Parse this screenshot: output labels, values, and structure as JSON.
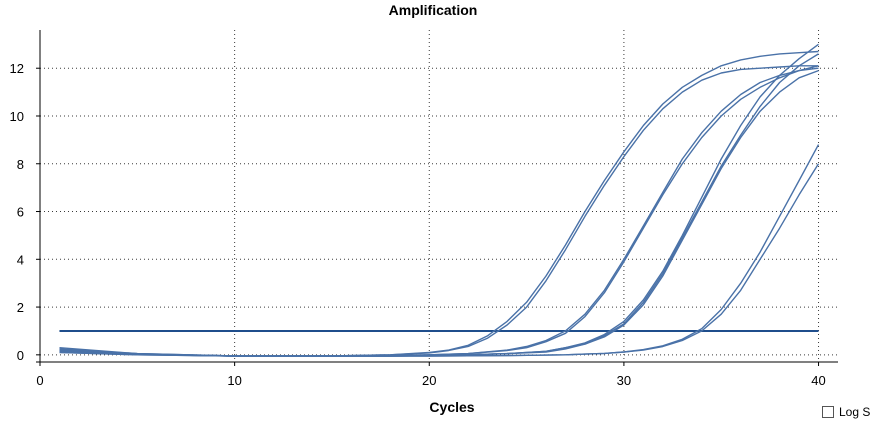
{
  "chart_data": {
    "type": "line",
    "title": "Amplification",
    "xlabel": "Cycles",
    "ylabel": "",
    "xlim": [
      0,
      41
    ],
    "ylim": [
      -0.3,
      13.6
    ],
    "xticks": [
      0,
      10,
      20,
      30,
      40
    ],
    "yticks": [
      0,
      2,
      4,
      6,
      8,
      10,
      12
    ],
    "grid": true,
    "threshold": 1.0,
    "series": [
      {
        "x": [
          1,
          5,
          10,
          15,
          18,
          20,
          21,
          22,
          23,
          24,
          25,
          26,
          27,
          28,
          29,
          30,
          31,
          32,
          33,
          34,
          35,
          36,
          37,
          38,
          39,
          40
        ],
        "values": [
          0.3,
          0.05,
          -0.05,
          -0.05,
          0,
          0.1,
          0.2,
          0.4,
          0.8,
          1.4,
          2.2,
          3.3,
          4.6,
          6.0,
          7.3,
          8.5,
          9.6,
          10.5,
          11.2,
          11.7,
          12.1,
          12.35,
          12.5,
          12.6,
          12.65,
          12.7
        ]
      },
      {
        "x": [
          1,
          5,
          10,
          15,
          18,
          20,
          21,
          22,
          23,
          24,
          25,
          26,
          27,
          28,
          29,
          30,
          31,
          32,
          33,
          34,
          35,
          36,
          37,
          38,
          39,
          40
        ],
        "values": [
          0.25,
          0.05,
          -0.05,
          -0.05,
          0,
          0.08,
          0.18,
          0.35,
          0.7,
          1.25,
          2.0,
          3.1,
          4.4,
          5.8,
          7.1,
          8.3,
          9.4,
          10.3,
          11.0,
          11.5,
          11.8,
          11.95,
          12.0,
          12.05,
          12.1,
          12.1
        ]
      },
      {
        "x": [
          1,
          5,
          10,
          15,
          18,
          20,
          22,
          24,
          25,
          26,
          27,
          28,
          29,
          30,
          31,
          32,
          33,
          34,
          35,
          36,
          37,
          38,
          39,
          40
        ],
        "values": [
          0.2,
          0.03,
          -0.05,
          -0.05,
          -0.03,
          0,
          0.05,
          0.2,
          0.35,
          0.6,
          1.0,
          1.7,
          2.7,
          4.0,
          5.4,
          6.8,
          8.2,
          9.3,
          10.2,
          10.9,
          11.4,
          11.7,
          11.9,
          12.0
        ]
      },
      {
        "x": [
          1,
          5,
          10,
          15,
          18,
          20,
          22,
          24,
          25,
          26,
          27,
          28,
          29,
          30,
          31,
          32,
          33,
          34,
          35,
          36,
          37,
          38,
          39,
          40
        ],
        "values": [
          0.2,
          0.03,
          -0.05,
          -0.05,
          -0.03,
          0,
          0.05,
          0.18,
          0.3,
          0.55,
          0.9,
          1.6,
          2.6,
          3.9,
          5.3,
          6.7,
          8.0,
          9.1,
          10.0,
          10.7,
          11.2,
          11.6,
          11.9,
          12.1
        ]
      },
      {
        "x": [
          1,
          5,
          10,
          15,
          18,
          20,
          22,
          24,
          26,
          27,
          28,
          29,
          30,
          31,
          32,
          33,
          34,
          35,
          36,
          37,
          38,
          39,
          40
        ],
        "values": [
          0.15,
          0.02,
          -0.05,
          -0.05,
          -0.05,
          -0.03,
          0,
          0.05,
          0.15,
          0.3,
          0.5,
          0.85,
          1.4,
          2.3,
          3.5,
          5.0,
          6.6,
          8.2,
          9.6,
          10.8,
          11.7,
          12.4,
          13.0
        ]
      },
      {
        "x": [
          1,
          5,
          10,
          15,
          18,
          20,
          22,
          24,
          26,
          27,
          28,
          29,
          30,
          31,
          32,
          33,
          34,
          35,
          36,
          37,
          38,
          39,
          40
        ],
        "values": [
          0.15,
          0.02,
          -0.05,
          -0.05,
          -0.05,
          -0.03,
          0,
          0.05,
          0.15,
          0.3,
          0.45,
          0.8,
          1.3,
          2.2,
          3.4,
          4.9,
          6.4,
          7.9,
          9.2,
          10.4,
          11.4,
          12.1,
          12.6
        ]
      },
      {
        "x": [
          1,
          5,
          10,
          15,
          18,
          20,
          22,
          24,
          26,
          27,
          28,
          29,
          30,
          31,
          32,
          33,
          34,
          35,
          36,
          37,
          38,
          39,
          40
        ],
        "values": [
          0.12,
          0.02,
          -0.05,
          -0.05,
          -0.05,
          -0.03,
          0,
          0.05,
          0.12,
          0.25,
          0.45,
          0.75,
          1.25,
          2.1,
          3.3,
          4.8,
          6.3,
          7.8,
          9.1,
          10.2,
          11.0,
          11.6,
          11.9
        ]
      },
      {
        "x": [
          1,
          5,
          10,
          15,
          20,
          24,
          27,
          28,
          29,
          30,
          31,
          32,
          33,
          34,
          35,
          36,
          37,
          38,
          39,
          40
        ],
        "values": [
          0.1,
          0,
          -0.05,
          -0.05,
          -0.05,
          -0.03,
          0,
          0.03,
          0.06,
          0.12,
          0.22,
          0.38,
          0.65,
          1.1,
          1.9,
          3.0,
          4.3,
          5.8,
          7.3,
          8.8
        ]
      },
      {
        "x": [
          1,
          5,
          10,
          15,
          20,
          24,
          27,
          28,
          29,
          30,
          31,
          32,
          33,
          34,
          35,
          36,
          37,
          38,
          39,
          40
        ],
        "values": [
          0.1,
          0,
          -0.05,
          -0.05,
          -0.05,
          -0.03,
          0,
          0.03,
          0.06,
          0.12,
          0.2,
          0.35,
          0.6,
          1.0,
          1.7,
          2.7,
          4.0,
          5.3,
          6.7,
          8.0
        ]
      }
    ],
    "colors": {
      "series": "#4a72a8",
      "threshold": "#1f4e8c",
      "grid": "#3a3a3a",
      "axis": "#000000"
    }
  },
  "controls": {
    "log_scale_label": "Log S",
    "log_scale_checked": false
  }
}
